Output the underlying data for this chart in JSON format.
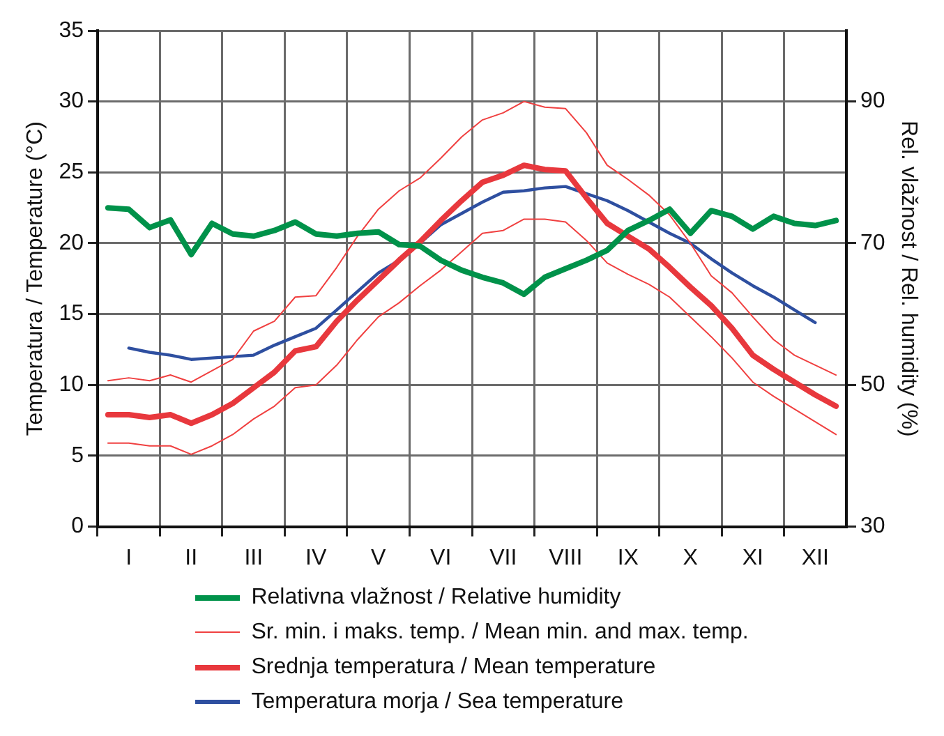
{
  "chart_data": {
    "type": "line",
    "ylabel": "Temperatura / Temperature (°C)",
    "y2label": "Rel. vlažnost / Rel. humidity (%)",
    "categories": [
      null,
      "I",
      null,
      null,
      "II",
      null,
      null,
      "III",
      null,
      null,
      "IV",
      null,
      null,
      "V",
      null,
      null,
      "VI",
      null,
      null,
      "VII",
      null,
      null,
      "VIII",
      null,
      null,
      "IX",
      null,
      null,
      "X",
      null,
      null,
      "XI",
      null,
      null,
      "XII",
      null
    ],
    "series": [
      {
        "name": "Relativna vlažnost / Relative humidity",
        "color": "#00924a",
        "axis": "y2",
        "values": [
          75.0,
          74.8,
          72.2,
          73.3,
          68.4,
          72.8,
          71.3,
          71.0,
          71.8,
          73.0,
          71.3,
          71.0,
          71.4,
          71.6,
          69.8,
          69.6,
          67.6,
          66.2,
          65.2,
          64.4,
          62.8,
          65.2,
          66.4,
          67.6,
          69.0,
          71.8,
          73.2,
          74.8,
          71.4,
          74.6,
          73.8,
          72.0,
          73.8,
          72.8,
          72.5,
          73.2
        ]
      },
      {
        "name": "Sr. min. i maks. temp. / Mean min. and max.  temp.",
        "color": "#f04040",
        "values": [
          10.3,
          10.5,
          10.3,
          10.7,
          10.2,
          11.0,
          11.8,
          13.8,
          14.5,
          16.2,
          16.3,
          18.3,
          20.5,
          22.4,
          23.7,
          24.6,
          26.0,
          27.5,
          28.7,
          29.2,
          30.0,
          29.6,
          29.5,
          27.8,
          25.5,
          24.5,
          23.4,
          22.0,
          20.0,
          17.7,
          16.5,
          14.8,
          13.2,
          12.1,
          11.4,
          10.7
        ]
      },
      {
        "color": "#f04040",
        "values": [
          5.9,
          5.9,
          5.7,
          5.7,
          5.1,
          5.7,
          6.5,
          7.6,
          8.5,
          9.8,
          10.0,
          11.4,
          13.2,
          14.8,
          15.8,
          17.0,
          18.1,
          19.4,
          20.7,
          20.9,
          21.7,
          21.7,
          21.5,
          20.2,
          18.6,
          17.8,
          17.1,
          16.2,
          14.8,
          13.4,
          11.9,
          10.2,
          9.2,
          8.3,
          7.4,
          6.5
        ]
      },
      {
        "name": "Srednja temperatura / Mean temperature",
        "color": "#e8383d",
        "values": [
          7.9,
          7.9,
          7.7,
          7.9,
          7.3,
          7.9,
          8.7,
          9.8,
          10.9,
          12.4,
          12.7,
          14.5,
          16.0,
          17.4,
          18.8,
          20.1,
          21.6,
          23.0,
          24.3,
          24.8,
          25.5,
          25.2,
          25.1,
          23.2,
          21.4,
          20.5,
          19.6,
          18.3,
          16.9,
          15.6,
          14.0,
          12.1,
          11.1,
          10.2,
          9.3,
          8.5
        ]
      },
      {
        "name": "Temperatura morja / Sea temperature",
        "color": "#2e4fa0",
        "values": [
          null,
          12.6,
          12.3,
          12.1,
          11.8,
          11.9,
          12.0,
          12.1,
          12.8,
          13.4,
          14.0,
          15.3,
          16.6,
          17.9,
          18.8,
          20.0,
          21.3,
          22.1,
          22.9,
          23.6,
          23.7,
          23.9,
          24.0,
          23.5,
          23.0,
          22.3,
          21.5,
          20.7,
          20.0,
          18.9,
          17.9,
          17.0,
          16.2,
          15.3,
          14.4,
          null
        ]
      }
    ],
    "ylim": [
      0,
      35
    ],
    "yticks": [
      0,
      5,
      10,
      15,
      20,
      25,
      30,
      35
    ],
    "y2lim": [
      30,
      100
    ],
    "y2ticks": [
      30,
      50,
      70,
      90
    ],
    "grid": true,
    "legend": "bottom",
    "marker": "none",
    "line_style": "solid"
  }
}
